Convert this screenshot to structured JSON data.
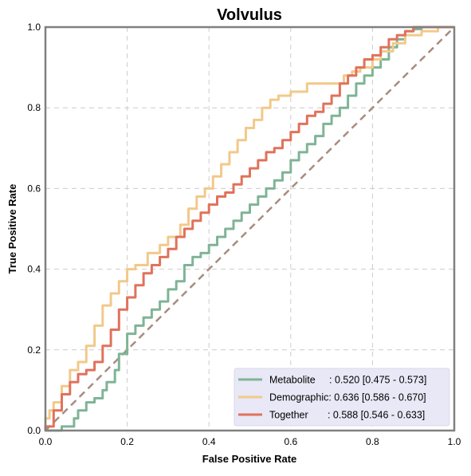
{
  "chart_data": {
    "type": "line",
    "title": "Volvulus",
    "xlabel": "False Positive Rate",
    "ylabel": "True Positive Rate",
    "xlim": [
      0,
      1
    ],
    "ylim": [
      0,
      1
    ],
    "xticks": [
      "0.0",
      "0.2",
      "0.4",
      "0.6",
      "0.8",
      "1.0"
    ],
    "yticks": [
      "0.0",
      "0.2",
      "0.4",
      "0.6",
      "0.8",
      "1.0"
    ],
    "grid": true,
    "legend_position": "bottom-right",
    "colors": {
      "metabolite": "#7fb496",
      "demographic": "#f2c98a",
      "together": "#e0725b",
      "chance": "#a88c80",
      "legend_bg": "#e8e8f6"
    },
    "series": [
      {
        "name": "Metabolite",
        "legend_label": "Metabolite     : 0.520 [0.475 - 0.573]",
        "color": "#7fb496",
        "points": [
          [
            0,
            0
          ],
          [
            0.04,
            0
          ],
          [
            0.05,
            0.01
          ],
          [
            0.07,
            0.01
          ],
          [
            0.08,
            0.03
          ],
          [
            0.1,
            0.05
          ],
          [
            0.12,
            0.07
          ],
          [
            0.14,
            0.08
          ],
          [
            0.15,
            0.1
          ],
          [
            0.17,
            0.12
          ],
          [
            0.18,
            0.15
          ],
          [
            0.2,
            0.19
          ],
          [
            0.22,
            0.24
          ],
          [
            0.24,
            0.26
          ],
          [
            0.26,
            0.28
          ],
          [
            0.28,
            0.3
          ],
          [
            0.3,
            0.32
          ],
          [
            0.32,
            0.35
          ],
          [
            0.34,
            0.37
          ],
          [
            0.36,
            0.41
          ],
          [
            0.38,
            0.43
          ],
          [
            0.4,
            0.44
          ],
          [
            0.42,
            0.46
          ],
          [
            0.44,
            0.48
          ],
          [
            0.46,
            0.5
          ],
          [
            0.48,
            0.52
          ],
          [
            0.5,
            0.54
          ],
          [
            0.52,
            0.56
          ],
          [
            0.54,
            0.58
          ],
          [
            0.56,
            0.6
          ],
          [
            0.58,
            0.62
          ],
          [
            0.6,
            0.64
          ],
          [
            0.62,
            0.67
          ],
          [
            0.64,
            0.69
          ],
          [
            0.66,
            0.71
          ],
          [
            0.68,
            0.73
          ],
          [
            0.7,
            0.76
          ],
          [
            0.72,
            0.78
          ],
          [
            0.74,
            0.8
          ],
          [
            0.76,
            0.83
          ],
          [
            0.78,
            0.86
          ],
          [
            0.8,
            0.88
          ],
          [
            0.82,
            0.9
          ],
          [
            0.84,
            0.92
          ],
          [
            0.86,
            0.95
          ],
          [
            0.88,
            0.97
          ],
          [
            0.9,
            0.99
          ],
          [
            0.92,
            0.995
          ],
          [
            0.95,
            1
          ],
          [
            1,
            1
          ]
        ]
      },
      {
        "name": "Demographic",
        "legend_label": "Demographic: 0.636 [0.586 - 0.670]",
        "color": "#f2c98a",
        "points": [
          [
            0,
            0
          ],
          [
            0.01,
            0.03
          ],
          [
            0.02,
            0.05
          ],
          [
            0.04,
            0.07
          ],
          [
            0.06,
            0.11
          ],
          [
            0.08,
            0.15
          ],
          [
            0.1,
            0.17
          ],
          [
            0.12,
            0.21
          ],
          [
            0.14,
            0.26
          ],
          [
            0.16,
            0.31
          ],
          [
            0.18,
            0.34
          ],
          [
            0.2,
            0.37
          ],
          [
            0.22,
            0.4
          ],
          [
            0.25,
            0.41
          ],
          [
            0.28,
            0.44
          ],
          [
            0.3,
            0.46
          ],
          [
            0.33,
            0.48
          ],
          [
            0.35,
            0.51
          ],
          [
            0.37,
            0.55
          ],
          [
            0.39,
            0.58
          ],
          [
            0.41,
            0.6
          ],
          [
            0.43,
            0.63
          ],
          [
            0.45,
            0.66
          ],
          [
            0.47,
            0.69
          ],
          [
            0.49,
            0.72
          ],
          [
            0.51,
            0.75
          ],
          [
            0.53,
            0.77
          ],
          [
            0.55,
            0.8
          ],
          [
            0.57,
            0.82
          ],
          [
            0.6,
            0.83
          ],
          [
            0.64,
            0.84
          ],
          [
            0.7,
            0.86
          ],
          [
            0.73,
            0.86
          ],
          [
            0.75,
            0.88
          ],
          [
            0.77,
            0.89
          ],
          [
            0.8,
            0.9
          ],
          [
            0.82,
            0.92
          ],
          [
            0.85,
            0.94
          ],
          [
            0.88,
            0.96
          ],
          [
            0.92,
            0.98
          ],
          [
            0.96,
            0.99
          ],
          [
            1,
            1
          ]
        ]
      },
      {
        "name": "Together",
        "legend_label": "Together       : 0.588 [0.546 - 0.633]",
        "color": "#e0725b",
        "points": [
          [
            0,
            0
          ],
          [
            0.02,
            0.01
          ],
          [
            0.04,
            0.05
          ],
          [
            0.06,
            0.09
          ],
          [
            0.08,
            0.12
          ],
          [
            0.1,
            0.14
          ],
          [
            0.12,
            0.15
          ],
          [
            0.14,
            0.17
          ],
          [
            0.16,
            0.21
          ],
          [
            0.18,
            0.25
          ],
          [
            0.2,
            0.3
          ],
          [
            0.22,
            0.33
          ],
          [
            0.24,
            0.36
          ],
          [
            0.26,
            0.39
          ],
          [
            0.28,
            0.41
          ],
          [
            0.3,
            0.43
          ],
          [
            0.32,
            0.45
          ],
          [
            0.34,
            0.48
          ],
          [
            0.36,
            0.5
          ],
          [
            0.38,
            0.52
          ],
          [
            0.4,
            0.54
          ],
          [
            0.42,
            0.56
          ],
          [
            0.44,
            0.58
          ],
          [
            0.46,
            0.59
          ],
          [
            0.48,
            0.61
          ],
          [
            0.5,
            0.63
          ],
          [
            0.52,
            0.65
          ],
          [
            0.54,
            0.67
          ],
          [
            0.56,
            0.69
          ],
          [
            0.58,
            0.7
          ],
          [
            0.6,
            0.72
          ],
          [
            0.62,
            0.74
          ],
          [
            0.64,
            0.76
          ],
          [
            0.66,
            0.78
          ],
          [
            0.68,
            0.79
          ],
          [
            0.7,
            0.81
          ],
          [
            0.72,
            0.83
          ],
          [
            0.74,
            0.86
          ],
          [
            0.76,
            0.88
          ],
          [
            0.78,
            0.9
          ],
          [
            0.8,
            0.92
          ],
          [
            0.82,
            0.93
          ],
          [
            0.84,
            0.95
          ],
          [
            0.86,
            0.97
          ],
          [
            0.88,
            0.98
          ],
          [
            0.9,
            0.99
          ],
          [
            1,
            1
          ]
        ]
      },
      {
        "name": "",
        "role": "chance",
        "color": "#a88c80",
        "dashed": true,
        "points": [
          [
            0,
            0
          ],
          [
            1,
            1
          ]
        ]
      }
    ]
  }
}
